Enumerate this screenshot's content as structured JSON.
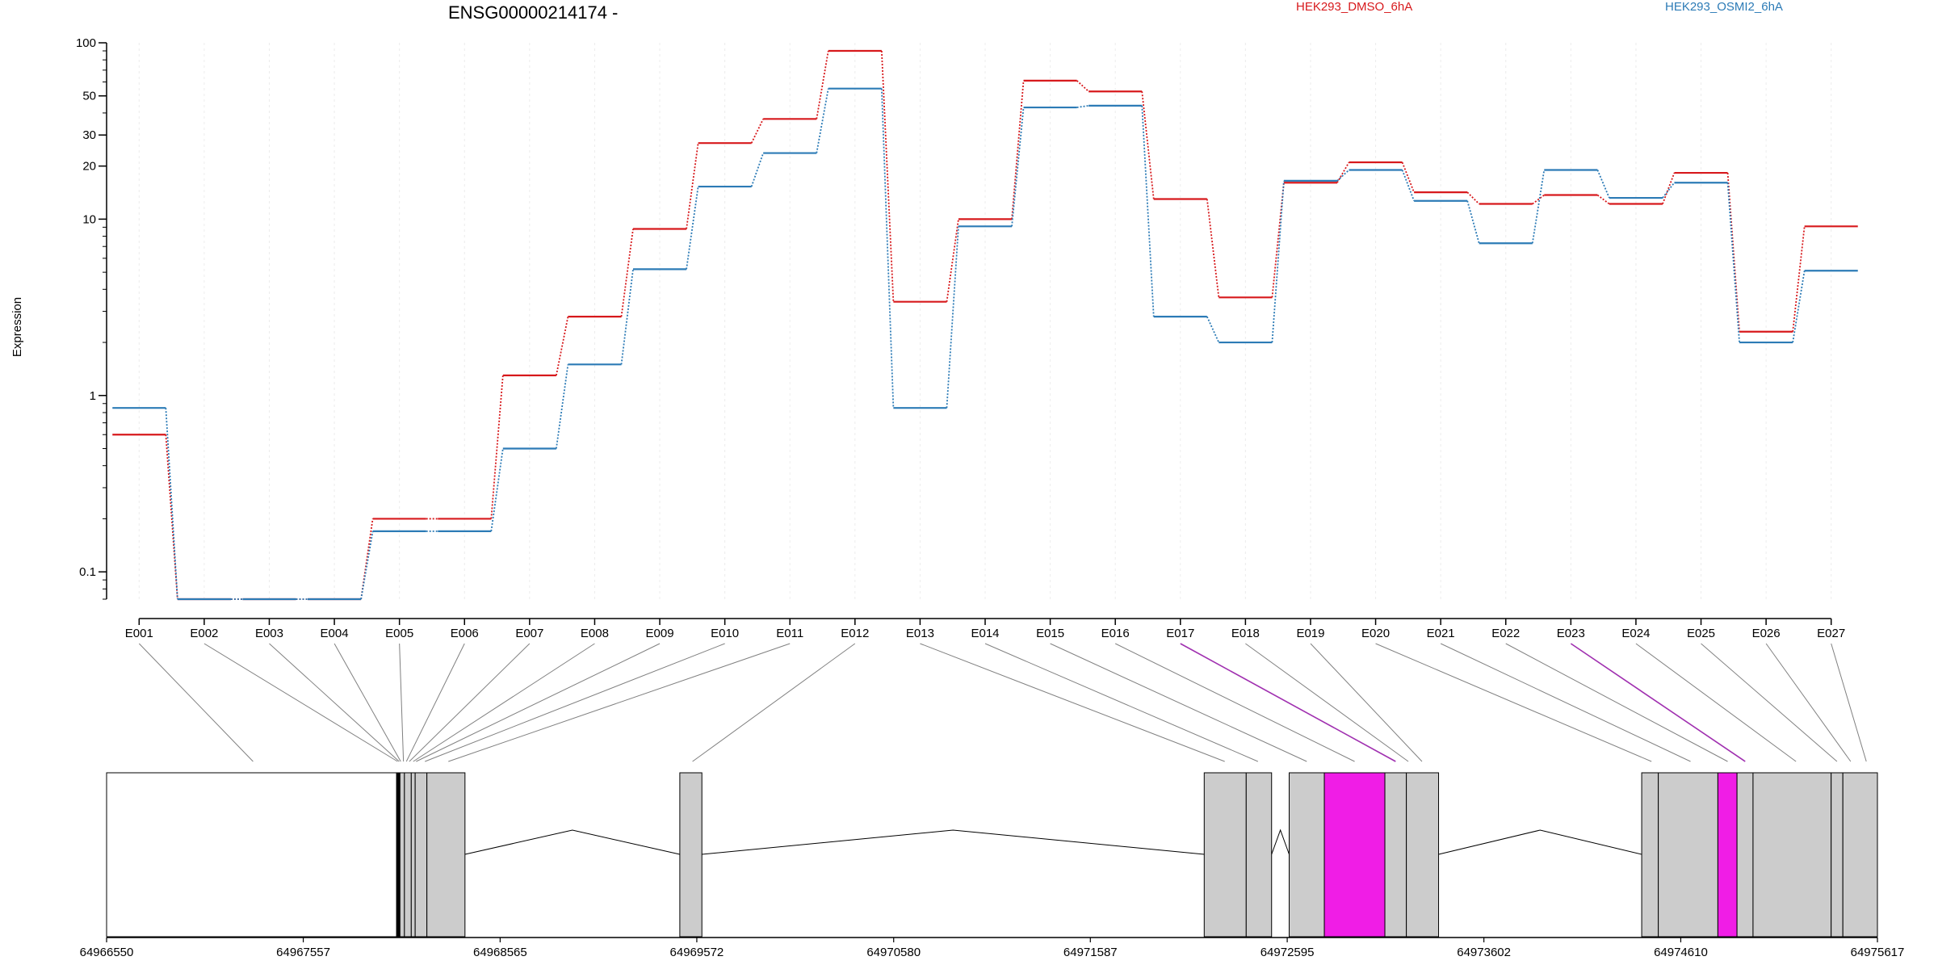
{
  "chart_data": {
    "type": "line",
    "title": "ENSG00000214174 -",
    "ylabel": "Expression",
    "yscale": "log",
    "ylim": [
      0.07,
      100
    ],
    "yticks": [
      0.1,
      1,
      10,
      20,
      30,
      50,
      100
    ],
    "ytick_labels": [
      "0.1",
      "1",
      "10",
      "20",
      "30",
      "50",
      "100"
    ],
    "categories": [
      "E001",
      "E002",
      "E003",
      "E004",
      "E005",
      "E006",
      "E007",
      "E008",
      "E009",
      "E010",
      "E011",
      "E012",
      "E013",
      "E014",
      "E015",
      "E016",
      "E017",
      "E018",
      "E019",
      "E020",
      "E021",
      "E022",
      "E023",
      "E024",
      "E025",
      "E026",
      "E027"
    ],
    "series": [
      {
        "name": "HEK293_DMSO_6hA",
        "color": "#d7191c",
        "values": [
          0.6,
          0.07,
          0.07,
          0.07,
          0.2,
          0.2,
          1.3,
          2.8,
          8.8,
          27,
          37,
          90,
          3.4,
          10,
          61,
          53,
          13,
          3.6,
          16.1,
          21,
          14.2,
          12.2,
          13.7,
          12.2,
          18.3,
          2.3,
          9.1
        ]
      },
      {
        "name": "HEK293_OSMI2_6hA",
        "color": "#2c7bb6",
        "values": [
          0.85,
          0.07,
          0.07,
          0.07,
          0.17,
          0.17,
          0.5,
          1.5,
          5.2,
          15.3,
          23.7,
          55,
          0.85,
          9.1,
          43,
          44,
          2.8,
          2.0,
          16.5,
          19,
          12.7,
          7.3,
          19,
          13.2,
          16.1,
          2.0,
          5.1
        ]
      }
    ],
    "grid": "vertical",
    "genomic_axis": {
      "range": [
        64966550,
        64975617
      ],
      "ticks": [
        64966550,
        64967557,
        64968565,
        64969572,
        64970580,
        64971587,
        64972595,
        64973602,
        64974610,
        64975617
      ],
      "tick_labels": [
        "64966550",
        "64967557",
        "64968565",
        "64969572",
        "64970580",
        "64971587",
        "64972595",
        "64973602",
        "64974610",
        "64975617"
      ]
    },
    "exon_blocks": [
      {
        "start": 64966550,
        "end": 64968035,
        "fill": "#ffffff"
      },
      {
        "start": 64968035,
        "end": 64968052,
        "fill": "#000000"
      },
      {
        "start": 64968052,
        "end": 64968075,
        "fill": "#cccccc"
      },
      {
        "start": 64968075,
        "end": 64968110,
        "fill": "#cccccc"
      },
      {
        "start": 64968110,
        "end": 64968130,
        "fill": "#cccccc"
      },
      {
        "start": 64968130,
        "end": 64968190,
        "fill": "#cccccc"
      },
      {
        "start": 64968190,
        "end": 64968385,
        "fill": "#cccccc"
      },
      {
        "start": 64969485,
        "end": 64969598,
        "fill": "#cccccc"
      },
      {
        "start": 64972170,
        "end": 64972385,
        "fill": "#cccccc"
      },
      {
        "start": 64972385,
        "end": 64972515,
        "fill": "#cccccc"
      },
      {
        "start": 64972605,
        "end": 64972785,
        "fill": "#cccccc"
      },
      {
        "start": 64972785,
        "end": 64973095,
        "fill": "#f01de6"
      },
      {
        "start": 64973095,
        "end": 64973205,
        "fill": "#cccccc"
      },
      {
        "start": 64973205,
        "end": 64973370,
        "fill": "#cccccc"
      },
      {
        "start": 64974410,
        "end": 64974495,
        "fill": "#cccccc"
      },
      {
        "start": 64974495,
        "end": 64974800,
        "fill": "#cccccc"
      },
      {
        "start": 64974800,
        "end": 64974898,
        "fill": "#f01de6"
      },
      {
        "start": 64974898,
        "end": 64974980,
        "fill": "#cccccc"
      },
      {
        "start": 64974980,
        "end": 64975380,
        "fill": "#cccccc"
      },
      {
        "start": 64975380,
        "end": 64975440,
        "fill": "#cccccc"
      },
      {
        "start": 64975440,
        "end": 64975617,
        "fill": "#cccccc"
      }
    ],
    "introns": [
      {
        "start": 64968385,
        "peak": 64968935,
        "end": 64969485
      },
      {
        "start": 64969598,
        "peak": 64970884,
        "end": 64972170
      },
      {
        "start": 64972515,
        "peak": 64972560,
        "end": 64972605
      },
      {
        "start": 64973370,
        "peak": 64973890,
        "end": 64974410
      }
    ],
    "exon_links": [
      64967300,
      64968040,
      64968048,
      64968056,
      64968070,
      64968085,
      64968100,
      64968120,
      64968135,
      64968180,
      64968300,
      64969550,
      64972275,
      64972445,
      64972695,
      64972940,
      64973150,
      64973215,
      64973285,
      64974460,
      64974660,
      64974850,
      64974940,
      64975200,
      64975410,
      64975480,
      64975560
    ],
    "highlighted_exons": [
      "E017",
      "E023"
    ],
    "link_color": "#808080",
    "highlight_color": "#a030b0"
  }
}
